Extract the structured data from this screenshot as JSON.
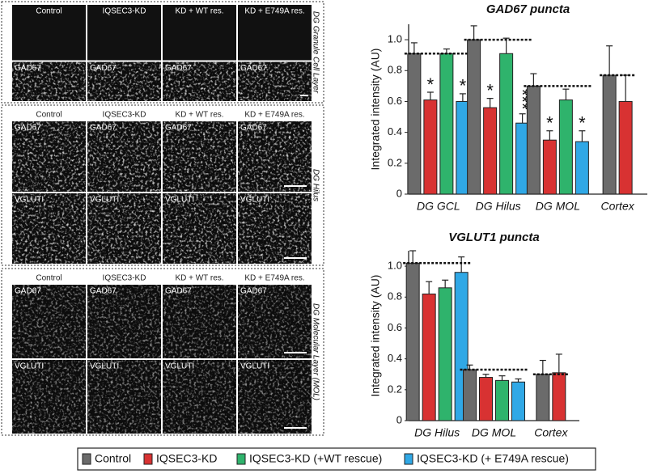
{
  "panels": [
    {
      "columns": [
        "Control",
        "IQSEC3-KD",
        "KD + WT res.",
        "KD + E749A res."
      ],
      "rows": [
        "GAD67"
      ],
      "region": "DG Granule Cell Layer"
    },
    {
      "columns": [
        "Control",
        "IQSEC3-KD",
        "KD + WT res.",
        "KD + E749A res."
      ],
      "rows": [
        "GAD67",
        "VGLUTI"
      ],
      "region": "DG Hilus"
    },
    {
      "columns": [
        "Control",
        "IQSEC3-KD",
        "KD + WT res.",
        "KD + E749A res."
      ],
      "rows": [
        "GAD67",
        "VGLUTI"
      ],
      "region": "DG Molecular Layer (MOL)"
    }
  ],
  "chart_data": [
    {
      "type": "bar",
      "title": "GAD67 puncta",
      "ylabel": "Integrated intensity (AU)",
      "categories": [
        "DG GCL",
        "DG Hilus",
        "DG MOL",
        "Cortex"
      ],
      "ylim": [
        0,
        1.1
      ],
      "yticks": [
        0,
        0.2,
        0.4,
        0.6,
        0.8,
        {
          "value": 1,
          "label": "1.0"
        }
      ],
      "series": [
        {
          "name": "Control",
          "color": "#6b6b6b",
          "values": [
            0.91,
            1.0,
            0.7,
            0.77
          ],
          "errors": [
            0.07,
            0.09,
            0.08,
            0.19
          ]
        },
        {
          "name": "IQSEC3-KD",
          "color": "#d83232",
          "values": [
            0.61,
            0.56,
            0.35,
            0.6
          ],
          "errors": [
            0.05,
            0.06,
            0.06,
            0.17
          ],
          "significance": [
            "*",
            "*",
            "*",
            null
          ]
        },
        {
          "name": "IQSEC3-KD (+WT rescue)",
          "color": "#2fb36c",
          "values": [
            0.91,
            0.91,
            0.61,
            null
          ],
          "errors": [
            0.03,
            0.1,
            0.07,
            null
          ]
        },
        {
          "name": "IQSEC3-KD (+ E749A rescue)",
          "color": "#30a8e6",
          "values": [
            0.6,
            0.46,
            0.34,
            null
          ],
          "errors": [
            0.05,
            0.06,
            0.07,
            null
          ],
          "significance": [
            "*",
            "***",
            "*",
            null
          ]
        }
      ]
    },
    {
      "type": "bar",
      "title": "VGLUT1 puncta",
      "ylabel": "Integrated intensity (AU)",
      "categories": [
        "DG Hilus",
        "DG MOL",
        "Cortex"
      ],
      "ylim": [
        0,
        1.1
      ],
      "yticks": [
        0,
        0.2,
        0.4,
        0.6,
        0.8,
        {
          "value": 1,
          "label": "1.0"
        }
      ],
      "series": [
        {
          "name": "Control",
          "color": "#6b6b6b",
          "values": [
            1.02,
            0.33,
            0.3
          ],
          "errors": [
            0.08,
            0.03,
            0.09
          ]
        },
        {
          "name": "IQSEC3-KD",
          "color": "#d83232",
          "values": [
            0.82,
            0.28,
            0.31
          ],
          "errors": [
            0.08,
            0.02,
            0.12
          ]
        },
        {
          "name": "IQSEC3-KD (+WT rescue)",
          "color": "#2fb36c",
          "values": [
            0.86,
            0.26,
            null
          ],
          "errors": [
            0.05,
            0.03,
            null
          ]
        },
        {
          "name": "IQSEC3-KD (+ E749A rescue)",
          "color": "#30a8e6",
          "values": [
            0.96,
            0.25,
            null
          ],
          "errors": [
            0.1,
            0.02,
            null
          ]
        }
      ]
    }
  ]
}
